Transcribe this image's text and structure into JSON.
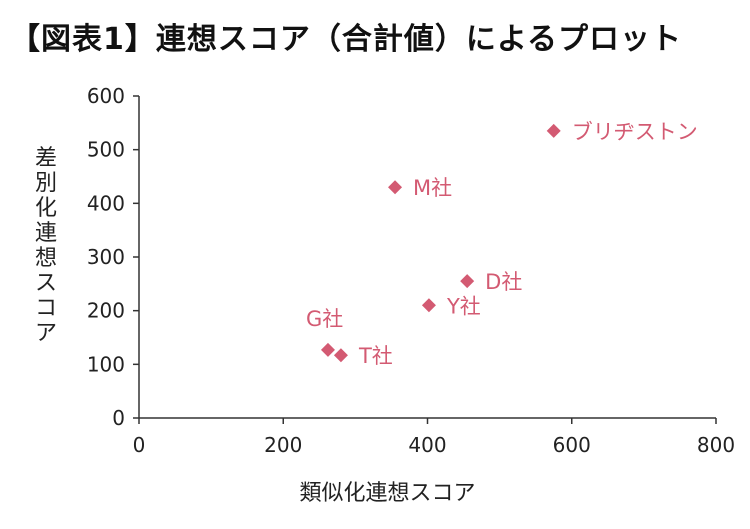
{
  "chart_data": {
    "type": "scatter",
    "title": "【図表1】連想スコア（合計値）によるプロット",
    "xlabel": "類似化連想スコア",
    "ylabel": "差別化連想スコア",
    "xlim": [
      0,
      800
    ],
    "ylim": [
      0,
      600
    ],
    "xticks": [
      0,
      200,
      400,
      600,
      800
    ],
    "yticks": [
      0,
      100,
      200,
      300,
      400,
      500,
      600
    ],
    "grid": false,
    "marker": "diamond",
    "point_color": "#d35a72",
    "points": [
      {
        "label": "ブリヂストン",
        "x": 575,
        "y": 535
      },
      {
        "label": "M社",
        "x": 355,
        "y": 430
      },
      {
        "label": "D社",
        "x": 455,
        "y": 255
      },
      {
        "label": "Y社",
        "x": 402,
        "y": 210
      },
      {
        "label": "G社",
        "x": 262,
        "y": 127
      },
      {
        "label": "T社",
        "x": 280,
        "y": 117
      }
    ]
  }
}
